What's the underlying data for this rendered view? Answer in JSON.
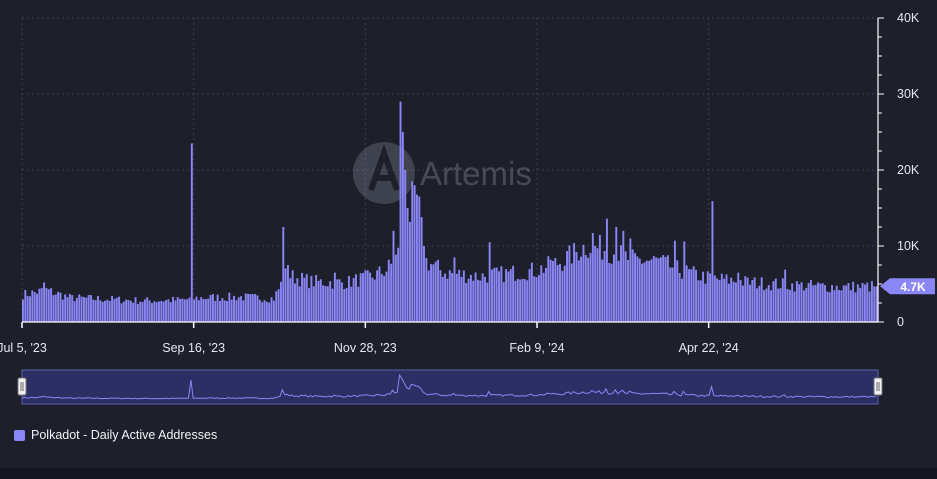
{
  "watermark": {
    "text": "Artemis"
  },
  "legend": {
    "label": "Polkadot - Daily Active Addresses"
  },
  "current_value_badge": "4.7K",
  "colors": {
    "bar": "#8b86f5",
    "background": "#1d1f2b",
    "badge": "#8b86f5",
    "grid": "#3c3f4f"
  },
  "chart_data": {
    "type": "bar",
    "series": [
      {
        "name": "Polkadot - Daily Active Addresses",
        "start_date": "2023-07-05",
        "end_date": "2024-07-03"
      }
    ],
    "ylim": [
      0,
      40000
    ],
    "y_ticks": [
      0,
      10000,
      20000,
      30000,
      40000
    ],
    "y_tick_labels": [
      "0",
      "10K",
      "20K",
      "30K",
      "40K"
    ],
    "x_ticks": [
      "2023-07-05",
      "2023-09-16",
      "2023-11-28",
      "2024-02-09",
      "2024-04-22"
    ],
    "x_tick_labels": [
      "Jul 5, '23",
      "Sep 16, '23",
      "Nov 28, '23",
      "Feb 9, '24",
      "Apr 22, '24"
    ],
    "anchors": [
      [
        "2023-07-05",
        3600
      ],
      [
        "2023-07-15",
        4200
      ],
      [
        "2023-07-25",
        3200
      ],
      [
        "2023-08-10",
        3000
      ],
      [
        "2023-08-25",
        2800
      ],
      [
        "2023-09-10",
        2900
      ],
      [
        "2023-09-20",
        3200
      ],
      [
        "2023-10-05",
        3300
      ],
      [
        "2023-10-20",
        3100
      ],
      [
        "2023-10-25",
        6200
      ],
      [
        "2023-11-05",
        5300
      ],
      [
        "2023-11-20",
        5200
      ],
      [
        "2023-12-01",
        6000
      ],
      [
        "2023-12-08",
        7000
      ],
      [
        "2023-12-12",
        9000
      ],
      [
        "2023-12-16",
        13500
      ],
      [
        "2023-12-20",
        16000
      ],
      [
        "2023-12-24",
        8000
      ],
      [
        "2024-01-01",
        6500
      ],
      [
        "2024-01-15",
        6000
      ],
      [
        "2024-01-25",
        6300
      ],
      [
        "2024-02-09",
        6800
      ],
      [
        "2024-02-20",
        8000
      ],
      [
        "2024-03-01",
        10000
      ],
      [
        "2024-03-10",
        9600
      ],
      [
        "2024-03-20",
        8200
      ],
      [
        "2024-04-01",
        8000
      ],
      [
        "2024-04-10",
        6800
      ],
      [
        "2024-04-22",
        5800
      ],
      [
        "2024-05-10",
        5200
      ],
      [
        "2024-06-01",
        4800
      ],
      [
        "2024-06-20",
        4600
      ],
      [
        "2024-07-03",
        4700
      ]
    ],
    "spikes": [
      [
        "2023-07-14",
        5200
      ],
      [
        "2023-09-15",
        23500
      ],
      [
        "2023-10-24",
        12500
      ],
      [
        "2023-10-26",
        7500
      ],
      [
        "2023-11-15",
        6500
      ],
      [
        "2023-12-08",
        8200
      ],
      [
        "2023-12-10",
        12000
      ],
      [
        "2023-12-13",
        29000
      ],
      [
        "2023-12-14",
        25000
      ],
      [
        "2023-12-15",
        20000
      ],
      [
        "2023-12-16",
        15000
      ],
      [
        "2023-12-18",
        18500
      ],
      [
        "2023-12-19",
        18000
      ],
      [
        "2023-12-21",
        16500
      ],
      [
        "2023-12-23",
        10000
      ],
      [
        "2024-01-05",
        8500
      ],
      [
        "2024-01-20",
        10500
      ],
      [
        "2024-02-15",
        8200
      ],
      [
        "2024-03-04",
        11700
      ],
      [
        "2024-03-10",
        13600
      ],
      [
        "2024-03-14",
        12500
      ],
      [
        "2024-03-17",
        12000
      ],
      [
        "2024-03-20",
        11000
      ],
      [
        "2024-04-08",
        10700
      ],
      [
        "2024-04-12",
        10600
      ],
      [
        "2024-04-24",
        15900
      ],
      [
        "2024-05-05",
        6500
      ],
      [
        "2024-05-25",
        6900
      ]
    ]
  }
}
